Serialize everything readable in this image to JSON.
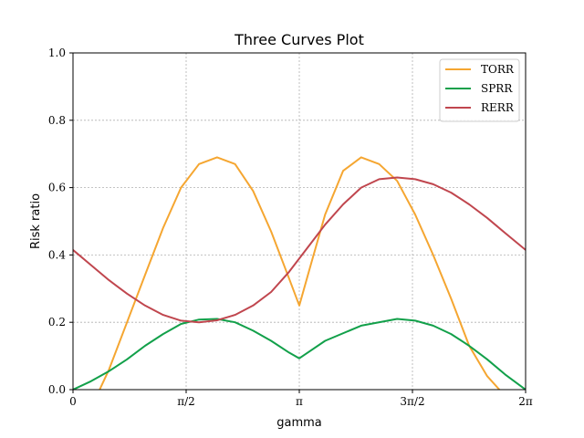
{
  "chart_data": {
    "type": "line",
    "title": "Three Curves Plot",
    "xlabel": "gamma",
    "ylabel": "Risk ratio",
    "xlim": [
      0,
      6.2832
    ],
    "ylim": [
      0,
      1.0
    ],
    "grid": true,
    "legend_position": "top-right",
    "x_ticks": [
      {
        "value": 0,
        "label": "0"
      },
      {
        "value": 1.5708,
        "label": "π/2"
      },
      {
        "value": 3.1416,
        "label": "π"
      },
      {
        "value": 4.7124,
        "label": "3π/2"
      },
      {
        "value": 6.2832,
        "label": "2π"
      }
    ],
    "y_ticks": [
      {
        "value": 0.0,
        "label": "0.0"
      },
      {
        "value": 0.2,
        "label": "0.2"
      },
      {
        "value": 0.4,
        "label": "0.4"
      },
      {
        "value": 0.6,
        "label": "0.6"
      },
      {
        "value": 0.8,
        "label": "0.8"
      },
      {
        "value": 1.0,
        "label": "1.0"
      }
    ],
    "series": [
      {
        "name": "TORR",
        "color": "#f5a631",
        "x": [
          0.37,
          0.5,
          0.75,
          1.0,
          1.25,
          1.5,
          1.75,
          2.0,
          2.25,
          2.5,
          2.75,
          3.0,
          3.1416,
          3.3,
          3.5,
          3.75,
          4.0,
          4.25,
          4.5,
          4.75,
          5.0,
          5.25,
          5.5,
          5.75,
          5.92
        ],
        "y": [
          0.0,
          0.06,
          0.2,
          0.34,
          0.48,
          0.6,
          0.67,
          0.69,
          0.67,
          0.59,
          0.47,
          0.33,
          0.25,
          0.37,
          0.52,
          0.65,
          0.69,
          0.67,
          0.62,
          0.52,
          0.4,
          0.27,
          0.13,
          0.04,
          0.0
        ]
      },
      {
        "name": "SPRR",
        "color": "#12a04a",
        "x": [
          0.0,
          0.25,
          0.5,
          0.75,
          1.0,
          1.25,
          1.5,
          1.75,
          2.0,
          2.25,
          2.5,
          2.75,
          3.0,
          3.1416,
          3.5,
          4.0,
          4.5,
          4.75,
          5.0,
          5.25,
          5.5,
          5.75,
          6.0,
          6.2832
        ],
        "y": [
          0.0,
          0.025,
          0.055,
          0.09,
          0.13,
          0.165,
          0.195,
          0.208,
          0.21,
          0.2,
          0.175,
          0.145,
          0.11,
          0.093,
          0.145,
          0.19,
          0.21,
          0.205,
          0.19,
          0.165,
          0.13,
          0.09,
          0.045,
          0.0
        ]
      },
      {
        "name": "RERR",
        "color": "#c0464e",
        "x": [
          0.0,
          0.25,
          0.5,
          0.75,
          1.0,
          1.25,
          1.5,
          1.75,
          2.0,
          2.25,
          2.5,
          2.75,
          3.0,
          3.25,
          3.5,
          3.75,
          4.0,
          4.25,
          4.5,
          4.75,
          5.0,
          5.25,
          5.5,
          5.75,
          6.0,
          6.2832
        ],
        "y": [
          0.415,
          0.37,
          0.325,
          0.285,
          0.25,
          0.222,
          0.205,
          0.2,
          0.206,
          0.222,
          0.25,
          0.29,
          0.35,
          0.42,
          0.49,
          0.55,
          0.6,
          0.625,
          0.63,
          0.625,
          0.61,
          0.585,
          0.55,
          0.51,
          0.465,
          0.415
        ]
      }
    ]
  }
}
